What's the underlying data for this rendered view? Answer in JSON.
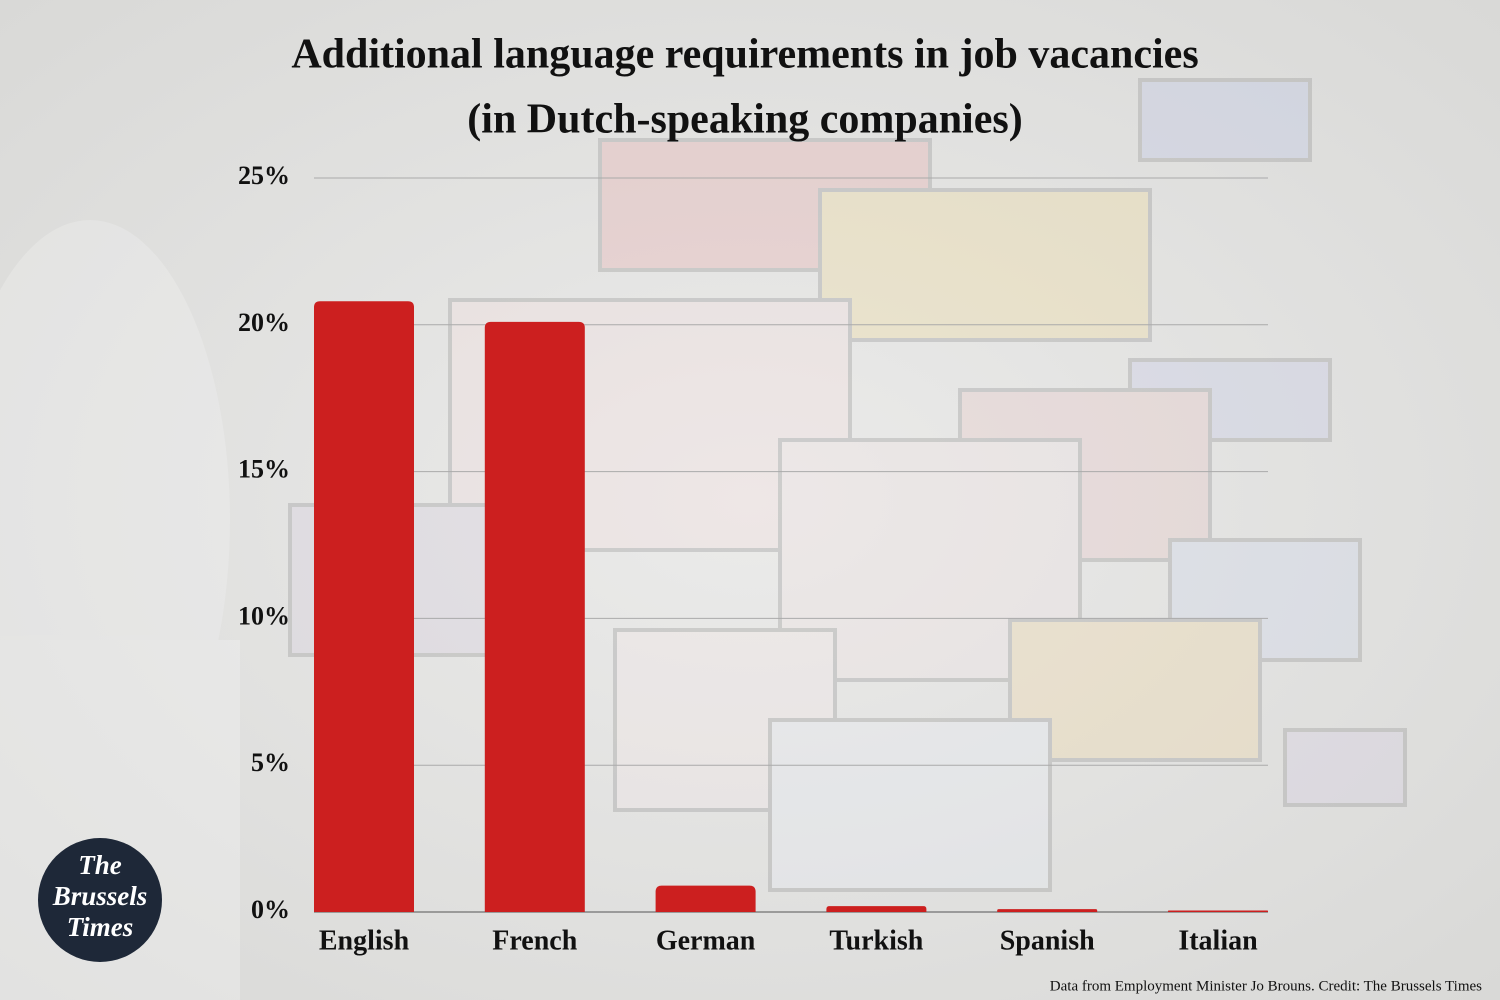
{
  "chart_data": {
    "type": "bar",
    "title": "Additional language requirements in job vacancies",
    "subtitle": "(in Dutch-speaking companies)",
    "categories": [
      "English",
      "French",
      "German",
      "Turkish",
      "Spanish",
      "Italian"
    ],
    "values": [
      20.8,
      20.1,
      0.9,
      0.2,
      0.1,
      0.05
    ],
    "color": "#cc1f1f",
    "ylim": [
      0,
      25
    ],
    "yticks": [
      {
        "value": 0,
        "label": "0%"
      },
      {
        "value": 5,
        "label": "5%"
      },
      {
        "value": 10,
        "label": "10%"
      },
      {
        "value": 15,
        "label": "15%"
      },
      {
        "value": 20,
        "label": "20%"
      },
      {
        "value": 25,
        "label": "25%"
      }
    ],
    "grid": true,
    "credit": "Data from Employment Minister Jo Brouns. Credit: The Brussels Times",
    "logo": [
      "The",
      "Brussels",
      "Times"
    ]
  }
}
